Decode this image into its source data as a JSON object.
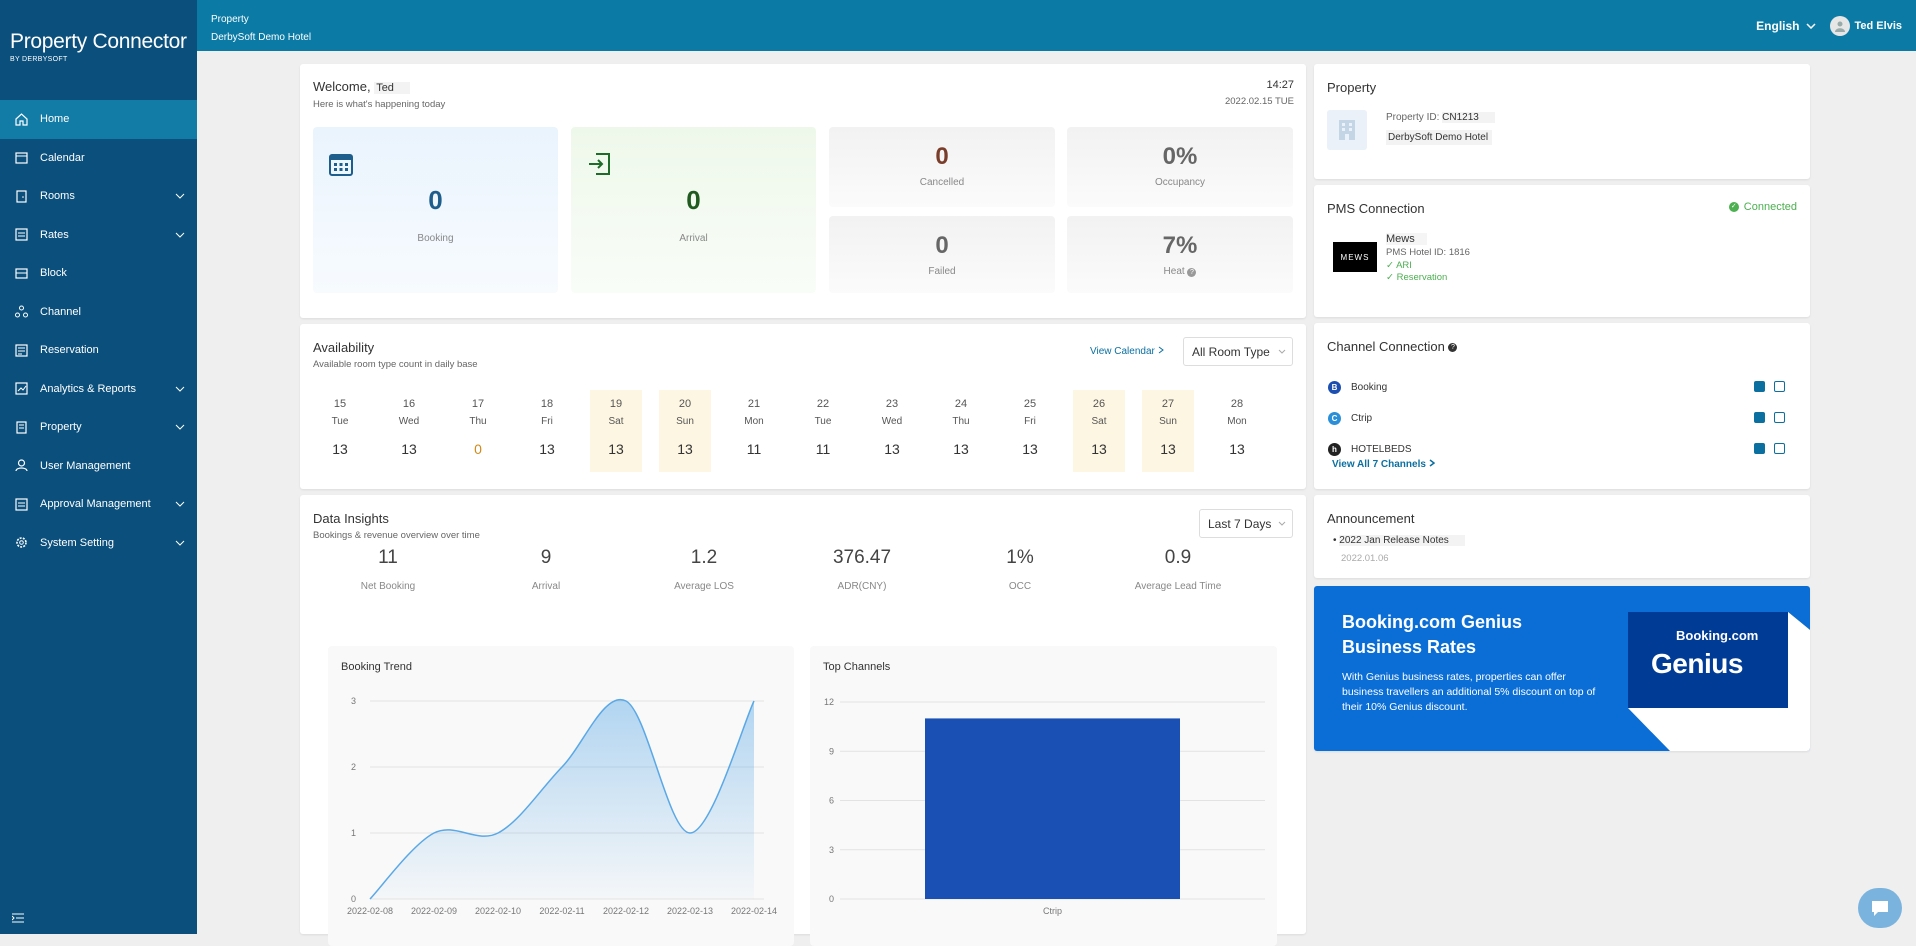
{
  "app": {
    "title": "Property Connector",
    "subtitle": "BY DERBYSOFT"
  },
  "sidebar": {
    "items": [
      {
        "label": "Home",
        "icon": "home-icon"
      },
      {
        "label": "Calendar",
        "icon": "calendar-icon"
      },
      {
        "label": "Rooms",
        "icon": "door-icon"
      },
      {
        "label": "Rates",
        "icon": "rates-icon"
      },
      {
        "label": "Block",
        "icon": "block-icon"
      },
      {
        "label": "Channel",
        "icon": "channel-icon"
      },
      {
        "label": "Reservation",
        "icon": "reservation-icon"
      },
      {
        "label": "Analytics & Reports",
        "icon": "analytics-icon"
      },
      {
        "label": "Property",
        "icon": "property-icon"
      },
      {
        "label": "User Management",
        "icon": "user-icon"
      },
      {
        "label": "Approval Management",
        "icon": "approval-icon"
      },
      {
        "label": "System Setting",
        "icon": "gear-icon"
      }
    ]
  },
  "topbar": {
    "crumb_label": "Property",
    "crumb_value": "DerbySoft Demo Hotel",
    "language": "English",
    "user": "Ted Elvis"
  },
  "welcome": {
    "title": "Welcome,",
    "name": "Ted",
    "subtitle": "Here is what's happening today",
    "time": "14:27",
    "date": "2022.02.15 TUE",
    "booking": {
      "value": "0",
      "label": "Booking"
    },
    "arrival": {
      "value": "0",
      "label": "Arrival"
    },
    "cancelled": {
      "value": "0",
      "label": "Cancelled"
    },
    "occupancy": {
      "value": "0%",
      "label": "Occupancy"
    },
    "failed": {
      "value": "0",
      "label": "Failed"
    },
    "heat": {
      "value": "7%",
      "label": "Heat"
    }
  },
  "availability": {
    "title": "Availability",
    "subtitle": "Available room type count in daily base",
    "view_calendar": "View Calendar",
    "room_type": "All Room Type",
    "days": [
      {
        "d": "15",
        "w": "Tue",
        "v": "13"
      },
      {
        "d": "16",
        "w": "Wed",
        "v": "13"
      },
      {
        "d": "17",
        "w": "Thu",
        "v": "0"
      },
      {
        "d": "18",
        "w": "Fri",
        "v": "13"
      },
      {
        "d": "19",
        "w": "Sat",
        "v": "13"
      },
      {
        "d": "20",
        "w": "Sun",
        "v": "13"
      },
      {
        "d": "21",
        "w": "Mon",
        "v": "11"
      },
      {
        "d": "22",
        "w": "Tue",
        "v": "11"
      },
      {
        "d": "23",
        "w": "Wed",
        "v": "13"
      },
      {
        "d": "24",
        "w": "Thu",
        "v": "13"
      },
      {
        "d": "25",
        "w": "Fri",
        "v": "13"
      },
      {
        "d": "26",
        "w": "Sat",
        "v": "13"
      },
      {
        "d": "27",
        "w": "Sun",
        "v": "13"
      },
      {
        "d": "28",
        "w": "Mon",
        "v": "13"
      }
    ]
  },
  "insights": {
    "title": "Data Insights",
    "subtitle": "Bookings & revenue overview over time",
    "range": "Last 7 Days",
    "metrics": [
      {
        "n": "11",
        "l": "Net Booking"
      },
      {
        "n": "9",
        "l": "Arrival"
      },
      {
        "n": "1.2",
        "l": "Average LOS"
      },
      {
        "n": "376.47",
        "l": "ADR(CNY)"
      },
      {
        "n": "1%",
        "l": "OCC"
      },
      {
        "n": "0.9",
        "l": "Average Lead Time"
      }
    ]
  },
  "chart_data": [
    {
      "type": "area",
      "title": "Booking Trend",
      "x": [
        "2022-02-08",
        "2022-02-09",
        "2022-02-10",
        "2022-02-11",
        "2022-02-12",
        "2022-02-13",
        "2022-02-14"
      ],
      "values": [
        0,
        1,
        1,
        2,
        3,
        1,
        3
      ],
      "yticks": [
        "0",
        "1",
        "2",
        "3"
      ],
      "ylim": [
        0,
        3
      ],
      "color": "#5aa8e6"
    },
    {
      "type": "bar",
      "title": "Top Channels",
      "categories": [
        "Ctrip"
      ],
      "values": [
        11
      ],
      "yticks": [
        "0",
        "3",
        "6",
        "9",
        "12"
      ],
      "ylim": [
        0,
        12
      ],
      "color": "#1a4fb4"
    }
  ],
  "property": {
    "title": "Property",
    "id_label": "Property ID:",
    "id_value": "CN1213",
    "name": "DerbySoft Demo Hotel"
  },
  "pms": {
    "title": "PMS Connection",
    "status": "Connected",
    "logo": "MEWS",
    "name": "Mews",
    "hotel_id": "PMS Hotel ID: 1816",
    "ari": "ARI",
    "reservation": "Reservation"
  },
  "channels": {
    "title": "Channel Connection",
    "items": [
      {
        "name": "Booking",
        "color": "#1d4fb0",
        "letter": "B"
      },
      {
        "name": "Ctrip",
        "color": "#2a8fd8",
        "letter": "C"
      },
      {
        "name": "HOTELBEDS",
        "color": "#222",
        "letter": "h"
      }
    ],
    "view_all": "View All 7 Channels"
  },
  "announcement": {
    "title": "Announcement",
    "item": "2022 Jan Release Notes",
    "date": "2022.01.06"
  },
  "promo": {
    "title_l1": "Booking.com Genius",
    "title_l2": "Business Rates",
    "body": "With Genius business rates, properties can offer business travellers an additional 5% discount on top of their 10% Genius discount.",
    "brand": "Booking.com",
    "genius": "Genius"
  }
}
